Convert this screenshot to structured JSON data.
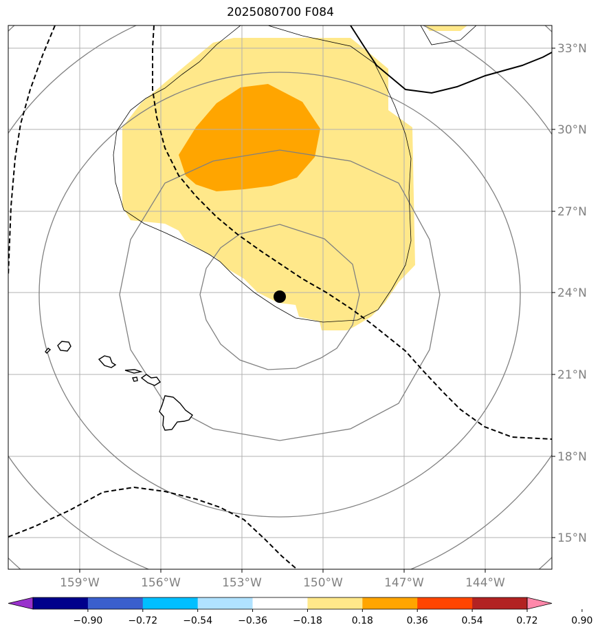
{
  "title": "2025080700 F084",
  "lon_labels": [
    "159°W",
    "156°W",
    "153°W",
    "150°W",
    "147°W",
    "144°W"
  ],
  "lat_labels": [
    "33°N",
    "30°N",
    "27°N",
    "24°N",
    "21°N",
    "18°N",
    "15°N"
  ],
  "colorbar": {
    "tick_labels": [
      "−0.90",
      "−0.72",
      "−0.54",
      "−0.36",
      "−0.18",
      "0.18",
      "0.36",
      "0.54",
      "0.72",
      "0.90"
    ],
    "colors": [
      "#9932cc",
      "#00008b",
      "#3a5fcd",
      "#00bfff",
      "#b0e2ff",
      "#ffffff",
      "#ffe88a",
      "#ffa500",
      "#ff4500",
      "#b22222",
      "#ff88aa"
    ]
  },
  "colors": {
    "shade_low": "#ffe88a",
    "shade_high": "#ffa500",
    "range_rings": "#808080",
    "gridlines": "#b0b0b0",
    "axis_labels": "#808080"
  },
  "storm_center_marker": "black-dot",
  "range_ring_style": "gray-concentric-circles",
  "contour_styles": [
    "solid-thin-black",
    "solid-thick-black",
    "dashed-black"
  ]
}
